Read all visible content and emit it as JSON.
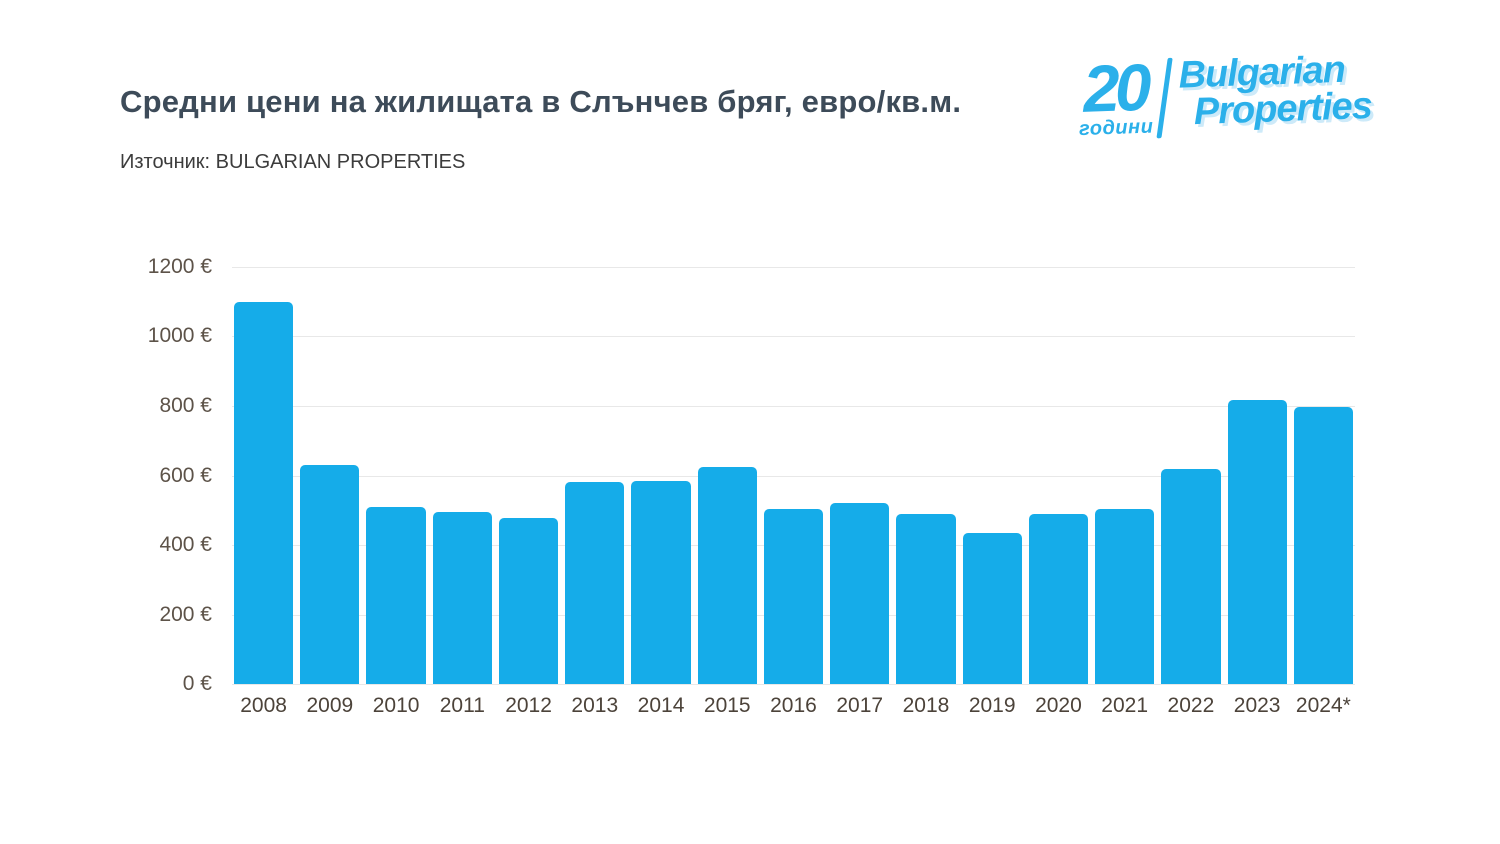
{
  "header": {
    "title": "Средни цени на жилищата в Слънчев бряг, евро/кв.м.",
    "source": "Източник: BULGARIAN PROPERTIES"
  },
  "logo": {
    "years_number": "20",
    "years_label": "години",
    "brand_line1": "Bulgarian",
    "brand_line2": "Properties",
    "color": "#2bb0ea"
  },
  "chart_data": {
    "type": "bar",
    "title": "Средни цени на жилищата в Слънчев бряг, евро/кв.м.",
    "xlabel": "",
    "ylabel": "",
    "categories": [
      "2008",
      "2009",
      "2010",
      "2011",
      "2012",
      "2013",
      "2014",
      "2015",
      "2016",
      "2017",
      "2018",
      "2019",
      "2020",
      "2021",
      "2022",
      "2023",
      "2024*"
    ],
    "values": [
      1100,
      630,
      510,
      495,
      477,
      580,
      583,
      625,
      505,
      520,
      490,
      435,
      490,
      505,
      618,
      816,
      798
    ],
    "ylim": [
      0,
      1200
    ],
    "yticks": [
      0,
      200,
      400,
      600,
      800,
      1000,
      1200
    ],
    "ytick_suffix": " €",
    "bar_color": "#15ace9",
    "grid": true,
    "legend_position": "none"
  }
}
